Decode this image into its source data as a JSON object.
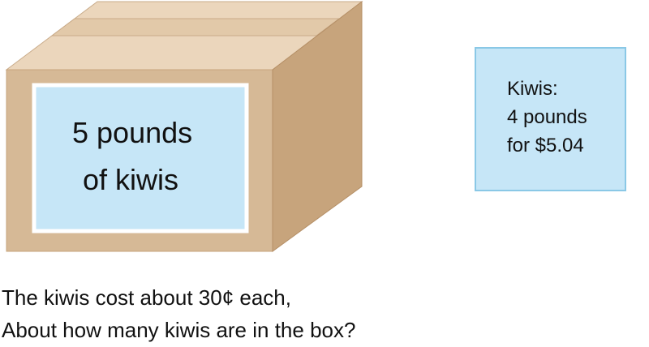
{
  "box": {
    "label_line_1": "5 pounds",
    "label_line_2": "of kiwis"
  },
  "price_card": {
    "title": "Kiwis:",
    "quantity": "4 pounds",
    "price": "for $5.04"
  },
  "question": {
    "line_1": "The kiwis cost about 30¢ each,",
    "line_2": "About how many kiwis are in the box?"
  },
  "colors": {
    "box_front": "#d6b996",
    "box_top": "#ebd6bc",
    "box_side": "#c7a47c",
    "label_fill": "#c6e6f7",
    "label_border": "#ffffff",
    "card_border": "#8ac8e6",
    "text": "#111111"
  }
}
